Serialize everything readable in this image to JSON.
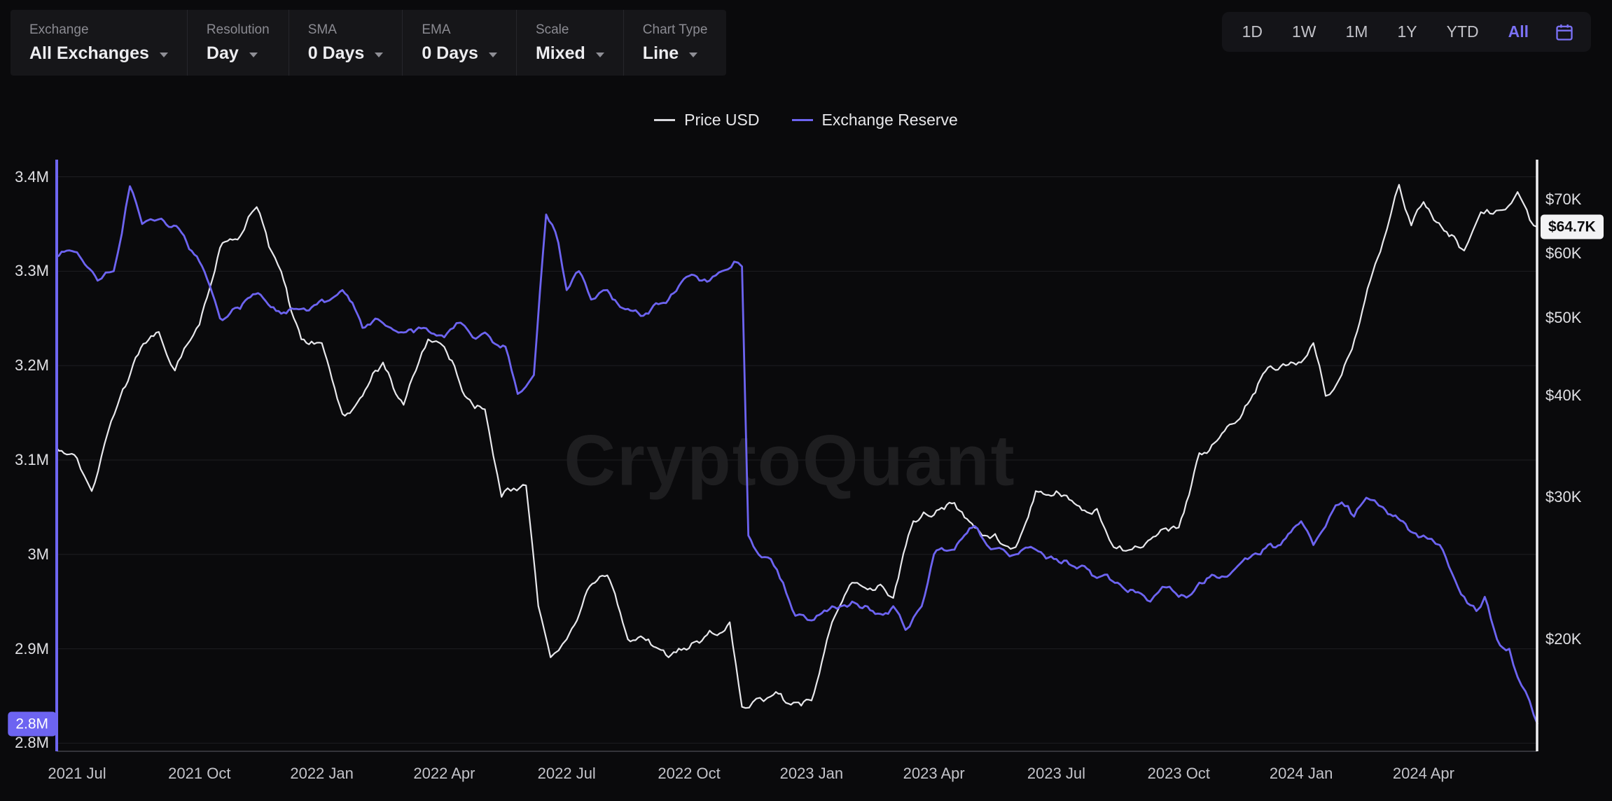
{
  "toolbar": {
    "groups": [
      {
        "label": "Exchange",
        "value": "All Exchanges"
      },
      {
        "label": "Resolution",
        "value": "Day"
      },
      {
        "label": "SMA",
        "value": "0 Days"
      },
      {
        "label": "EMA",
        "value": "0 Days"
      },
      {
        "label": "Scale",
        "value": "Mixed"
      },
      {
        "label": "Chart Type",
        "value": "Line"
      }
    ]
  },
  "range_bar": {
    "buttons": [
      "1D",
      "1W",
      "1M",
      "1Y",
      "YTD",
      "All"
    ],
    "active": "All"
  },
  "legend": [
    {
      "label": "Price USD",
      "color": "#d9d9de"
    },
    {
      "label": "Exchange Reserve",
      "color": "#6d64f1"
    }
  ],
  "watermark": "CryptoQuant",
  "badges": {
    "left_value": "2.8M",
    "right_value": "$64.7K"
  },
  "chart_data": {
    "type": "line",
    "grid": "horizontal",
    "legend_position": "top-center",
    "x_ticks": [
      {
        "label": "2021 Jul",
        "t": 2021.5
      },
      {
        "label": "2021 Oct",
        "t": 2021.75
      },
      {
        "label": "2022 Jan",
        "t": 2022.0
      },
      {
        "label": "2022 Apr",
        "t": 2022.25
      },
      {
        "label": "2022 Jul",
        "t": 2022.5
      },
      {
        "label": "2022 Oct",
        "t": 2022.75
      },
      {
        "label": "2023 Jan",
        "t": 2023.0
      },
      {
        "label": "2023 Apr",
        "t": 2023.25
      },
      {
        "label": "2023 Jul",
        "t": 2023.5
      },
      {
        "label": "2023 Oct",
        "t": 2023.75
      },
      {
        "label": "2024 Jan",
        "t": 2024.0
      },
      {
        "label": "2024 Apr",
        "t": 2024.25
      }
    ],
    "left_axis": {
      "series": "Exchange Reserve",
      "scale": "linear",
      "unit": "M BTC",
      "ticks": [
        {
          "label": "3.4M",
          "v": 3.4
        },
        {
          "label": "3.3M",
          "v": 3.3
        },
        {
          "label": "3.2M",
          "v": 3.2
        },
        {
          "label": "3.1M",
          "v": 3.1
        },
        {
          "label": "3M",
          "v": 3.0
        },
        {
          "label": "2.9M",
          "v": 2.9
        },
        {
          "label": "2.8M",
          "v": 2.8
        }
      ]
    },
    "right_axis": {
      "series": "Price USD",
      "scale": "log",
      "unit": "K USD",
      "ticks": [
        {
          "label": "$70K",
          "v": 70
        },
        {
          "label": "$60K",
          "v": 60
        },
        {
          "label": "$50K",
          "v": 50
        },
        {
          "label": "$40K",
          "v": 40
        },
        {
          "label": "$30K",
          "v": 30
        },
        {
          "label": "$20K",
          "v": 20
        }
      ]
    },
    "series": [
      {
        "name": "Price USD",
        "axis": "right",
        "color": "#e8e8ec",
        "unit": "K USD",
        "points": [
          [
            2021.458,
            34.5
          ],
          [
            2021.5,
            33.5
          ],
          [
            2021.53,
            30.5
          ],
          [
            2021.583,
            39
          ],
          [
            2021.625,
            45
          ],
          [
            2021.667,
            48
          ],
          [
            2021.7,
            43
          ],
          [
            2021.75,
            49
          ],
          [
            2021.792,
            61
          ],
          [
            2021.833,
            63
          ],
          [
            2021.867,
            68.5
          ],
          [
            2021.917,
            57
          ],
          [
            2021.958,
            47
          ],
          [
            2022.0,
            46.5
          ],
          [
            2022.042,
            38
          ],
          [
            2022.083,
            40
          ],
          [
            2022.125,
            44
          ],
          [
            2022.167,
            39
          ],
          [
            2022.217,
            47
          ],
          [
            2022.25,
            46
          ],
          [
            2022.292,
            40
          ],
          [
            2022.333,
            38.5
          ],
          [
            2022.367,
            30
          ],
          [
            2022.417,
            31
          ],
          [
            2022.442,
            22
          ],
          [
            2022.467,
            19
          ],
          [
            2022.5,
            20
          ],
          [
            2022.542,
            23
          ],
          [
            2022.583,
            24
          ],
          [
            2022.625,
            20
          ],
          [
            2022.667,
            20
          ],
          [
            2022.708,
            19
          ],
          [
            2022.75,
            19.5
          ],
          [
            2022.792,
            20.5
          ],
          [
            2022.833,
            21
          ],
          [
            2022.858,
            16.5
          ],
          [
            2022.917,
            17
          ],
          [
            2022.958,
            16.6
          ],
          [
            2023.0,
            16.8
          ],
          [
            2023.042,
            21
          ],
          [
            2023.083,
            23.5
          ],
          [
            2023.125,
            23
          ],
          [
            2023.167,
            22.5
          ],
          [
            2023.208,
            28
          ],
          [
            2023.25,
            28.5
          ],
          [
            2023.292,
            29.5
          ],
          [
            2023.333,
            27.5
          ],
          [
            2023.375,
            27
          ],
          [
            2023.417,
            26
          ],
          [
            2023.458,
            30.5
          ],
          [
            2023.5,
            30.5
          ],
          [
            2023.542,
            29.3
          ],
          [
            2023.583,
            29
          ],
          [
            2023.617,
            26
          ],
          [
            2023.667,
            26
          ],
          [
            2023.708,
            27
          ],
          [
            2023.75,
            27.5
          ],
          [
            2023.792,
            34
          ],
          [
            2023.833,
            35.5
          ],
          [
            2023.875,
            37.5
          ],
          [
            2023.917,
            42
          ],
          [
            2023.958,
            43.5
          ],
          [
            2024.0,
            44
          ],
          [
            2024.025,
            46.5
          ],
          [
            2024.05,
            40
          ],
          [
            2024.083,
            42.5
          ],
          [
            2024.125,
            51
          ],
          [
            2024.167,
            62
          ],
          [
            2024.2,
            73
          ],
          [
            2024.225,
            65
          ],
          [
            2024.25,
            69.5
          ],
          [
            2024.292,
            64
          ],
          [
            2024.333,
            60.5
          ],
          [
            2024.367,
            67.5
          ],
          [
            2024.417,
            68
          ],
          [
            2024.442,
            71.5
          ],
          [
            2024.467,
            66
          ],
          [
            2024.483,
            64.7
          ]
        ]
      },
      {
        "name": "Exchange Reserve",
        "axis": "left",
        "color": "#6d64f1",
        "unit": "M BTC",
        "points": [
          [
            2021.458,
            3.315
          ],
          [
            2021.5,
            3.32
          ],
          [
            2021.542,
            3.29
          ],
          [
            2021.575,
            3.3
          ],
          [
            2021.608,
            3.39
          ],
          [
            2021.633,
            3.35
          ],
          [
            2021.667,
            3.355
          ],
          [
            2021.708,
            3.345
          ],
          [
            2021.75,
            3.31
          ],
          [
            2021.792,
            3.25
          ],
          [
            2021.833,
            3.26
          ],
          [
            2021.875,
            3.275
          ],
          [
            2021.917,
            3.255
          ],
          [
            2021.958,
            3.26
          ],
          [
            2022.0,
            3.27
          ],
          [
            2022.042,
            3.28
          ],
          [
            2022.083,
            3.24
          ],
          [
            2022.125,
            3.245
          ],
          [
            2022.167,
            3.235
          ],
          [
            2022.208,
            3.24
          ],
          [
            2022.25,
            3.23
          ],
          [
            2022.275,
            3.245
          ],
          [
            2022.308,
            3.23
          ],
          [
            2022.333,
            3.235
          ],
          [
            2022.375,
            3.22
          ],
          [
            2022.4,
            3.17
          ],
          [
            2022.433,
            3.19
          ],
          [
            2022.458,
            3.36
          ],
          [
            2022.483,
            3.33
          ],
          [
            2022.5,
            3.28
          ],
          [
            2022.525,
            3.3
          ],
          [
            2022.55,
            3.27
          ],
          [
            2022.583,
            3.28
          ],
          [
            2022.625,
            3.26
          ],
          [
            2022.667,
            3.255
          ],
          [
            2022.708,
            3.27
          ],
          [
            2022.75,
            3.295
          ],
          [
            2022.792,
            3.29
          ],
          [
            2022.817,
            3.3
          ],
          [
            2022.842,
            3.31
          ],
          [
            2022.858,
            3.305
          ],
          [
            2022.871,
            3.02
          ],
          [
            2022.892,
            3.0
          ],
          [
            2022.917,
            2.995
          ],
          [
            2022.942,
            2.97
          ],
          [
            2022.967,
            2.935
          ],
          [
            2023.0,
            2.93
          ],
          [
            2023.042,
            2.945
          ],
          [
            2023.083,
            2.95
          ],
          [
            2023.125,
            2.94
          ],
          [
            2023.167,
            2.945
          ],
          [
            2023.192,
            2.92
          ],
          [
            2023.225,
            2.945
          ],
          [
            2023.25,
            3.0
          ],
          [
            2023.292,
            3.005
          ],
          [
            2023.333,
            3.03
          ],
          [
            2023.358,
            3.01
          ],
          [
            2023.392,
            3.005
          ],
          [
            2023.417,
            3.0
          ],
          [
            2023.458,
            3.005
          ],
          [
            2023.5,
            2.995
          ],
          [
            2023.542,
            2.985
          ],
          [
            2023.583,
            2.975
          ],
          [
            2023.625,
            2.97
          ],
          [
            2023.667,
            2.96
          ],
          [
            2023.692,
            2.95
          ],
          [
            2023.725,
            2.965
          ],
          [
            2023.75,
            2.955
          ],
          [
            2023.792,
            2.97
          ],
          [
            2023.833,
            2.975
          ],
          [
            2023.875,
            2.99
          ],
          [
            2023.917,
            3.0
          ],
          [
            2023.958,
            3.01
          ],
          [
            2024.0,
            3.035
          ],
          [
            2024.025,
            3.01
          ],
          [
            2024.058,
            3.04
          ],
          [
            2024.083,
            3.055
          ],
          [
            2024.108,
            3.04
          ],
          [
            2024.133,
            3.06
          ],
          [
            2024.167,
            3.05
          ],
          [
            2024.208,
            3.035
          ],
          [
            2024.25,
            3.02
          ],
          [
            2024.283,
            3.01
          ],
          [
            2024.308,
            2.98
          ],
          [
            2024.333,
            2.955
          ],
          [
            2024.358,
            2.94
          ],
          [
            2024.375,
            2.955
          ],
          [
            2024.4,
            2.91
          ],
          [
            2024.425,
            2.9
          ],
          [
            2024.442,
            2.87
          ],
          [
            2024.458,
            2.855
          ],
          [
            2024.475,
            2.83
          ],
          [
            2024.483,
            2.82
          ]
        ]
      }
    ]
  }
}
